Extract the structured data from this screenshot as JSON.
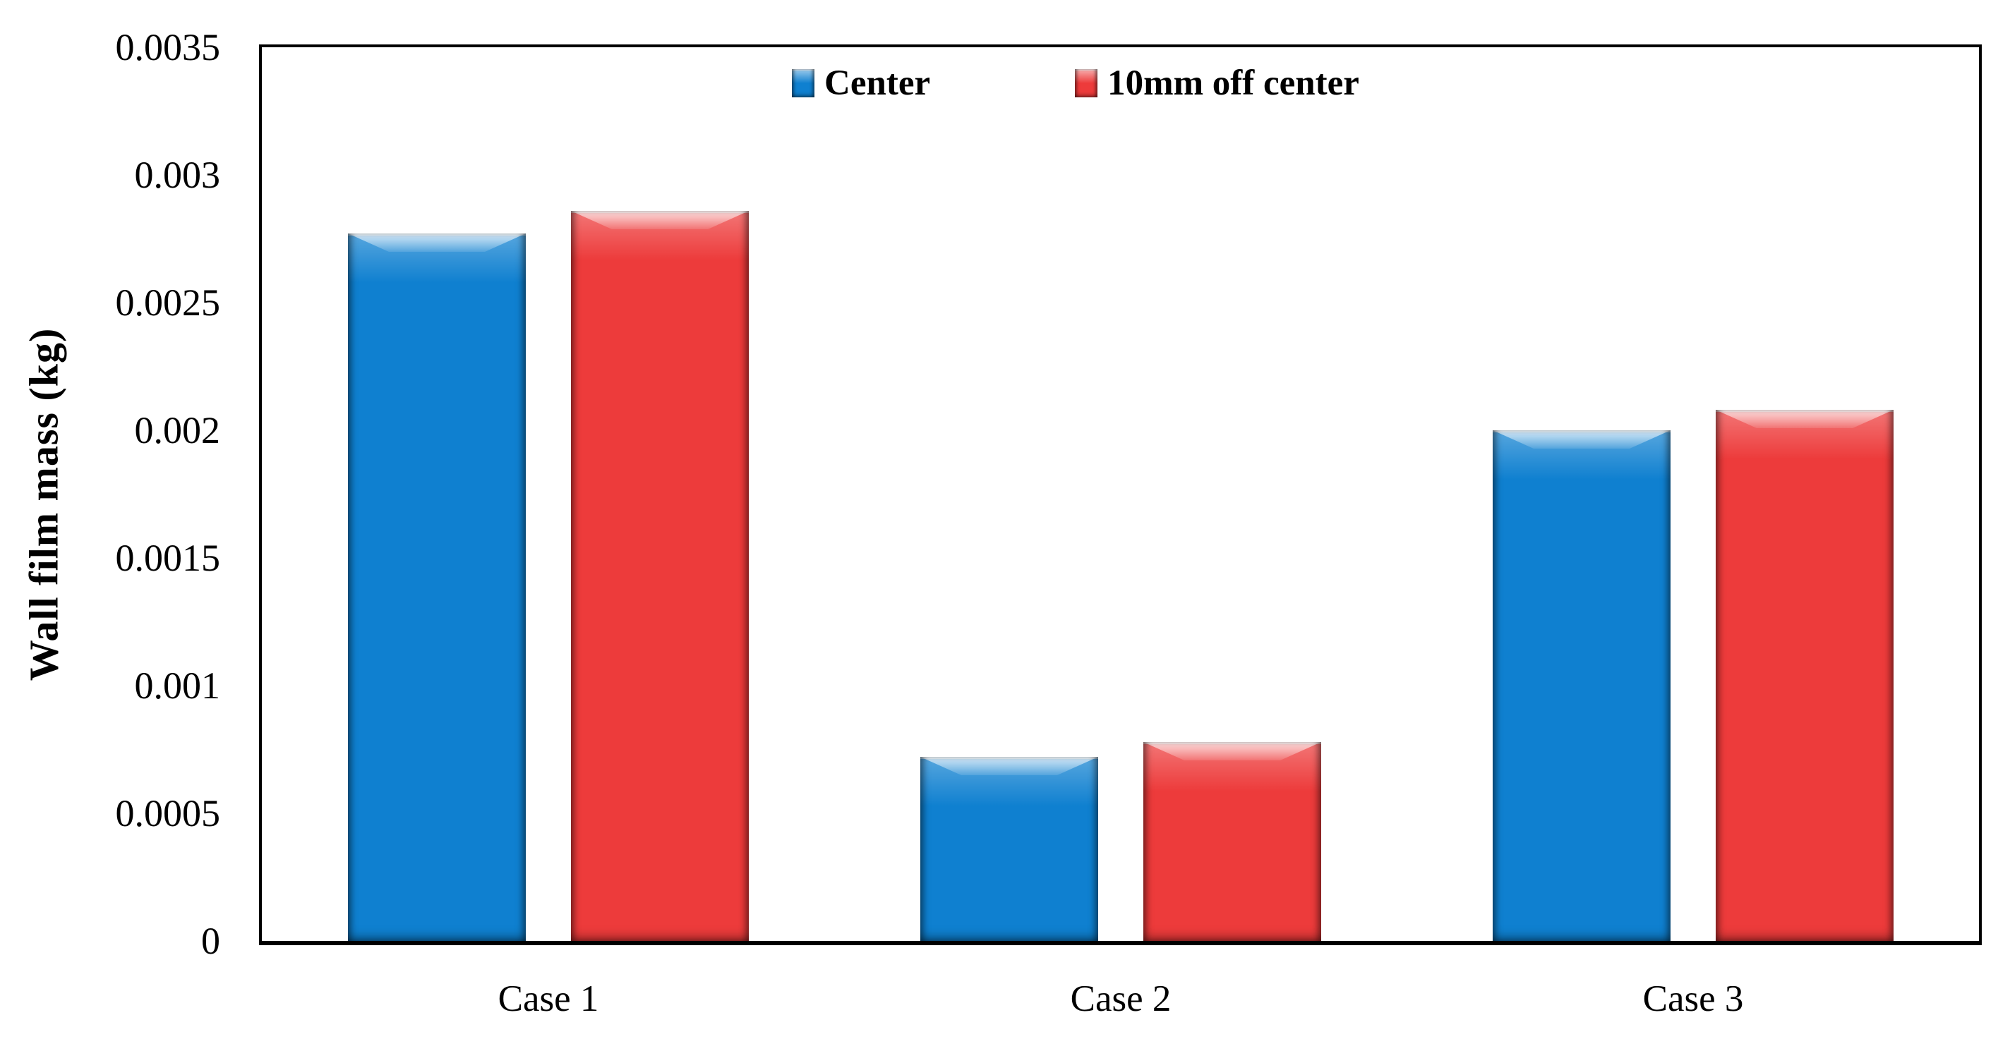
{
  "figure": {
    "background_color": "#ffffff",
    "frame_color": "#000000"
  },
  "chart_data": {
    "type": "bar",
    "title": "",
    "categories": [
      "Case 1",
      "Case 2",
      "Case 3"
    ],
    "series": [
      {
        "name": "Center",
        "color": "#0f80d0",
        "values": [
          0.00277,
          0.00072,
          0.002
        ]
      },
      {
        "name": "10mm off center",
        "color": "#ed3b3b",
        "values": [
          0.00286,
          0.00078,
          0.00208
        ]
      }
    ],
    "xlabel": "",
    "ylabel": "Wall film mass (kg)",
    "ylim": [
      0,
      0.0035
    ],
    "yticks": [
      {
        "value": 0,
        "label": "0"
      },
      {
        "value": 0.0005,
        "label": "0.0005"
      },
      {
        "value": 0.001,
        "label": "0.001"
      },
      {
        "value": 0.0015,
        "label": "0.0015"
      },
      {
        "value": 0.002,
        "label": "0.002"
      },
      {
        "value": 0.0025,
        "label": "0.0025"
      },
      {
        "value": 0.003,
        "label": "0.003"
      },
      {
        "value": 0.0035,
        "label": "0.0035"
      }
    ],
    "grid": false,
    "legend_position": "top-center",
    "bar_style": "3d-bevel"
  }
}
